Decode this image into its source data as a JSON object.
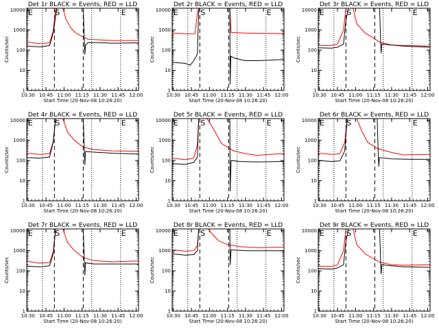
{
  "chart_data": {
    "type": "line",
    "grid_rows": 3,
    "grid_cols": 3,
    "x_tick_labels": [
      "10:30",
      "10:45",
      "11:00",
      "11:15",
      "11:30",
      "11:45",
      "12:00"
    ],
    "x_ticks_minutes": [
      630,
      645,
      660,
      675,
      690,
      705,
      720
    ],
    "xlim_minutes": [
      629,
      722
    ],
    "y_tick_labels": [
      "1",
      "10",
      "100",
      "1000",
      "10000"
    ],
    "ylim": [
      1,
      12000
    ],
    "y_scale": "log",
    "xlabel": "Start Time (20-Nov-08 10:26:20)",
    "ylabel": "Counts/sec",
    "markers": [
      {
        "label": "E",
        "minute": 629.5,
        "style": "dotted"
      },
      {
        "label": "",
        "minute": 642,
        "style": "dotted"
      },
      {
        "label": "S",
        "minute": 652,
        "style": "dashed"
      },
      {
        "label": "",
        "minute": 676,
        "style": "dashed"
      },
      {
        "label": "",
        "minute": 683,
        "style": "dotted"
      },
      {
        "label": "E",
        "minute": 707,
        "style": "dotted"
      }
    ],
    "series_colors": {
      "events": "#000000",
      "lld": "#ff0000"
    },
    "panels": [
      {
        "title": "Det 1r BLACK = Events, RED = LLD",
        "events": [
          [
            629,
            160
          ],
          [
            640,
            145
          ],
          [
            648,
            170
          ],
          [
            651,
            700
          ],
          [
            654,
            12000
          ],
          [
            676,
            12000
          ],
          [
            677,
            200
          ],
          [
            677.4,
            60
          ],
          [
            677.8,
            180
          ],
          [
            680,
            240
          ],
          [
            690,
            235
          ],
          [
            700,
            220
          ],
          [
            722,
            230
          ]
        ],
        "lld": [
          [
            629,
            260
          ],
          [
            640,
            205
          ],
          [
            648,
            230
          ],
          [
            651,
            900
          ],
          [
            653,
            12000
          ],
          [
            659,
            12000
          ],
          [
            662,
            3000
          ],
          [
            666,
            1200
          ],
          [
            670,
            700
          ],
          [
            676,
            440
          ],
          [
            680,
            350
          ],
          [
            690,
            320
          ],
          [
            700,
            300
          ],
          [
            722,
            300
          ]
        ]
      },
      {
        "title": "Det 2r BLACK = Events, RED = LLD",
        "events": [
          [
            629,
            25
          ],
          [
            640,
            22
          ],
          [
            644,
            18
          ],
          [
            647,
            30
          ],
          [
            650,
            65
          ],
          [
            651,
            9000
          ],
          [
            652,
            12000
          ],
          [
            677,
            12000
          ],
          [
            677.2,
            2
          ],
          [
            677.8,
            50
          ],
          [
            681,
            40
          ],
          [
            690,
            30
          ],
          [
            700,
            30
          ],
          [
            710,
            32
          ],
          [
            722,
            35
          ]
        ],
        "lld": [
          [
            629,
            700
          ],
          [
            640,
            640
          ],
          [
            648,
            650
          ],
          [
            650,
            7000
          ],
          [
            651,
            12000
          ],
          [
            677,
            12000
          ],
          [
            678,
            750
          ],
          [
            690,
            700
          ],
          [
            710,
            680
          ],
          [
            722,
            650
          ]
        ]
      },
      {
        "title": "Det 3r BLACK = Events, RED = LLD",
        "events": [
          [
            629,
            130
          ],
          [
            640,
            125
          ],
          [
            645,
            140
          ],
          [
            650,
            200
          ],
          [
            652,
            3000
          ],
          [
            654,
            12000
          ],
          [
            680,
            12000
          ],
          [
            681,
            180
          ],
          [
            681.3,
            70
          ],
          [
            681.8,
            200
          ],
          [
            690,
            180
          ],
          [
            700,
            160
          ],
          [
            710,
            150
          ],
          [
            722,
            140
          ]
        ],
        "lld": [
          [
            629,
            170
          ],
          [
            640,
            170
          ],
          [
            645,
            200
          ],
          [
            650,
            1000
          ],
          [
            652,
            12000
          ],
          [
            658,
            12000
          ],
          [
            661,
            2000
          ],
          [
            668,
            700
          ],
          [
            675,
            400
          ],
          [
            680,
            250
          ],
          [
            690,
            180
          ],
          [
            700,
            170
          ],
          [
            722,
            160
          ]
        ]
      },
      {
        "title": "Det 4r BLACK = Events, RED = LLD",
        "events": [
          [
            629,
            140
          ],
          [
            640,
            130
          ],
          [
            648,
            150
          ],
          [
            651,
            800
          ],
          [
            653,
            12000
          ],
          [
            676,
            12000
          ],
          [
            677,
            200
          ],
          [
            677.4,
            60
          ],
          [
            677.8,
            280
          ],
          [
            685,
            260
          ],
          [
            700,
            230
          ],
          [
            722,
            210
          ]
        ],
        "lld": [
          [
            629,
            230
          ],
          [
            640,
            200
          ],
          [
            648,
            220
          ],
          [
            651,
            900
          ],
          [
            653,
            12000
          ],
          [
            659,
            12000
          ],
          [
            663,
            2500
          ],
          [
            668,
            1100
          ],
          [
            672,
            700
          ],
          [
            676,
            460
          ],
          [
            685,
            350
          ],
          [
            700,
            300
          ],
          [
            722,
            290
          ]
        ]
      },
      {
        "title": "Det 5r BLACK = Events, RED = LLD",
        "events": [
          [
            629,
            70
          ],
          [
            640,
            65
          ],
          [
            647,
            80
          ],
          [
            650,
            150
          ],
          [
            651,
            12000
          ],
          [
            677,
            12000
          ],
          [
            677.2,
            3
          ],
          [
            678,
            100
          ],
          [
            685,
            90
          ],
          [
            700,
            85
          ],
          [
            722,
            90
          ]
        ],
        "lld": [
          [
            629,
            130
          ],
          [
            640,
            110
          ],
          [
            647,
            130
          ],
          [
            650,
            600
          ],
          [
            651,
            12000
          ],
          [
            658,
            12000
          ],
          [
            663,
            4000
          ],
          [
            670,
            700
          ],
          [
            680,
            300
          ],
          [
            690,
            220
          ],
          [
            700,
            180
          ],
          [
            710,
            200
          ],
          [
            722,
            220
          ]
        ]
      },
      {
        "title": "Det 6r BLACK = Events, RED = LLD",
        "events": [
          [
            629,
            100
          ],
          [
            640,
            90
          ],
          [
            647,
            95
          ],
          [
            651,
            300
          ],
          [
            653,
            12000
          ],
          [
            678,
            12000
          ],
          [
            679,
            140
          ],
          [
            679.4,
            50
          ],
          [
            679.8,
            140
          ],
          [
            690,
            120
          ],
          [
            705,
            115
          ],
          [
            722,
            115
          ]
        ],
        "lld": [
          [
            629,
            230
          ],
          [
            640,
            200
          ],
          [
            647,
            220
          ],
          [
            651,
            800
          ],
          [
            653,
            12000
          ],
          [
            661,
            12000
          ],
          [
            665,
            3000
          ],
          [
            670,
            800
          ],
          [
            678,
            400
          ],
          [
            690,
            250
          ],
          [
            700,
            190
          ],
          [
            722,
            200
          ]
        ]
      },
      {
        "title": "Det 7r BLACK = Events, RED = LLD",
        "events": [
          [
            629,
            170
          ],
          [
            640,
            160
          ],
          [
            648,
            180
          ],
          [
            651,
            700
          ],
          [
            653,
            12000
          ],
          [
            676,
            12000
          ],
          [
            677,
            200
          ],
          [
            677.4,
            60
          ],
          [
            677.8,
            250
          ],
          [
            685,
            220
          ],
          [
            700,
            220
          ],
          [
            722,
            220
          ]
        ],
        "lld": [
          [
            629,
            300
          ],
          [
            640,
            240
          ],
          [
            648,
            260
          ],
          [
            651,
            900
          ],
          [
            653,
            12000
          ],
          [
            659,
            12000
          ],
          [
            663,
            2500
          ],
          [
            668,
            1100
          ],
          [
            672,
            700
          ],
          [
            676,
            450
          ],
          [
            685,
            320
          ],
          [
            700,
            280
          ],
          [
            722,
            310
          ]
        ]
      },
      {
        "title": "Det 8r BLACK = Events, RED = LLD",
        "events": [
          [
            629,
            700
          ],
          [
            640,
            600
          ],
          [
            647,
            640
          ],
          [
            650,
            1000
          ],
          [
            651,
            12000
          ],
          [
            677,
            12000
          ],
          [
            677.2,
            200
          ],
          [
            678,
            1100
          ],
          [
            690,
            1000
          ],
          [
            705,
            1000
          ],
          [
            722,
            1000
          ]
        ],
        "lld": [
          [
            629,
            1100
          ],
          [
            640,
            950
          ],
          [
            647,
            1000
          ],
          [
            650,
            1800
          ],
          [
            651,
            12000
          ],
          [
            659,
            12000
          ],
          [
            663,
            6000
          ],
          [
            668,
            3000
          ],
          [
            675,
            2000
          ],
          [
            685,
            1600
          ],
          [
            700,
            1400
          ],
          [
            722,
            1500
          ]
        ]
      },
      {
        "title": "Det 9r BLACK = Events, RED = LLD",
        "events": [
          [
            629,
            130
          ],
          [
            640,
            120
          ],
          [
            645,
            140
          ],
          [
            650,
            200
          ],
          [
            652,
            3000
          ],
          [
            654,
            12000
          ],
          [
            680,
            12000
          ],
          [
            681,
            180
          ],
          [
            681.3,
            70
          ],
          [
            681.8,
            200
          ],
          [
            690,
            180
          ],
          [
            700,
            160
          ],
          [
            722,
            150
          ]
        ],
        "lld": [
          [
            629,
            170
          ],
          [
            640,
            165
          ],
          [
            645,
            200
          ],
          [
            650,
            1000
          ],
          [
            652,
            12000
          ],
          [
            658,
            12000
          ],
          [
            661,
            2000
          ],
          [
            668,
            700
          ],
          [
            675,
            400
          ],
          [
            680,
            270
          ],
          [
            690,
            200
          ],
          [
            700,
            190
          ],
          [
            722,
            200
          ]
        ]
      }
    ]
  }
}
